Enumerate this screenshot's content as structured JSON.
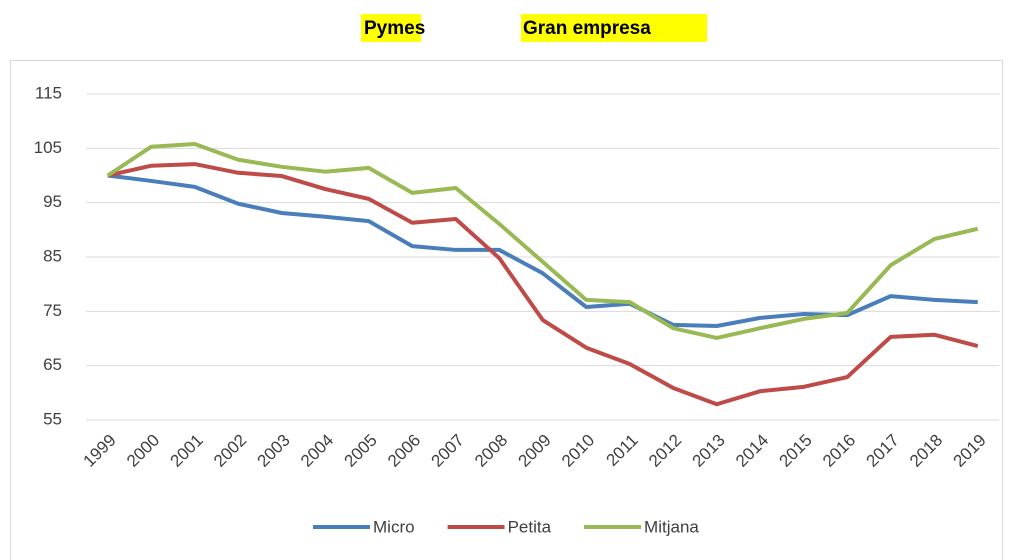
{
  "chart_data": {
    "type": "line",
    "annotations": [
      "Pymes",
      "Gran empresa"
    ],
    "categories": [
      "1999",
      "2000",
      "2001",
      "2002",
      "2003",
      "2004",
      "2005",
      "2006",
      "2007",
      "2008",
      "2009",
      "2010",
      "2011",
      "2012",
      "2013",
      "2014",
      "2015",
      "2016",
      "2017",
      "2018",
      "2019"
    ],
    "series": [
      {
        "name": "Micro",
        "color": "#4a7ebb",
        "values": [
          100,
          99,
          97.9,
          94.8,
          93.1,
          92.4,
          91.6,
          87,
          86.3,
          86.3,
          82,
          75.8,
          76.4,
          72.5,
          72.3,
          73.8,
          74.5,
          74.3,
          77.8,
          77.1,
          76.7
        ]
      },
      {
        "name": "Petita",
        "color": "#be4b48",
        "values": [
          100,
          101.8,
          102.1,
          100.5,
          99.9,
          97.5,
          95.7,
          91.3,
          92,
          84.8,
          73.4,
          68.3,
          65.3,
          60.9,
          57.9,
          60.3,
          61.1,
          62.9,
          70.3,
          70.7,
          68.6
        ]
      },
      {
        "name": "Mitjana",
        "color": "#98b954",
        "values": [
          100,
          105.3,
          105.8,
          102.9,
          101.6,
          100.7,
          101.4,
          96.8,
          97.7,
          91.1,
          84.1,
          77.1,
          76.7,
          71.9,
          70.1,
          71.9,
          73.6,
          74.7,
          83.5,
          88.3,
          90.2
        ]
      }
    ],
    "ylim": [
      55,
      115
    ],
    "yticks": [
      55,
      65,
      75,
      85,
      95,
      105,
      115
    ],
    "grid": true,
    "legend": "bottom"
  }
}
